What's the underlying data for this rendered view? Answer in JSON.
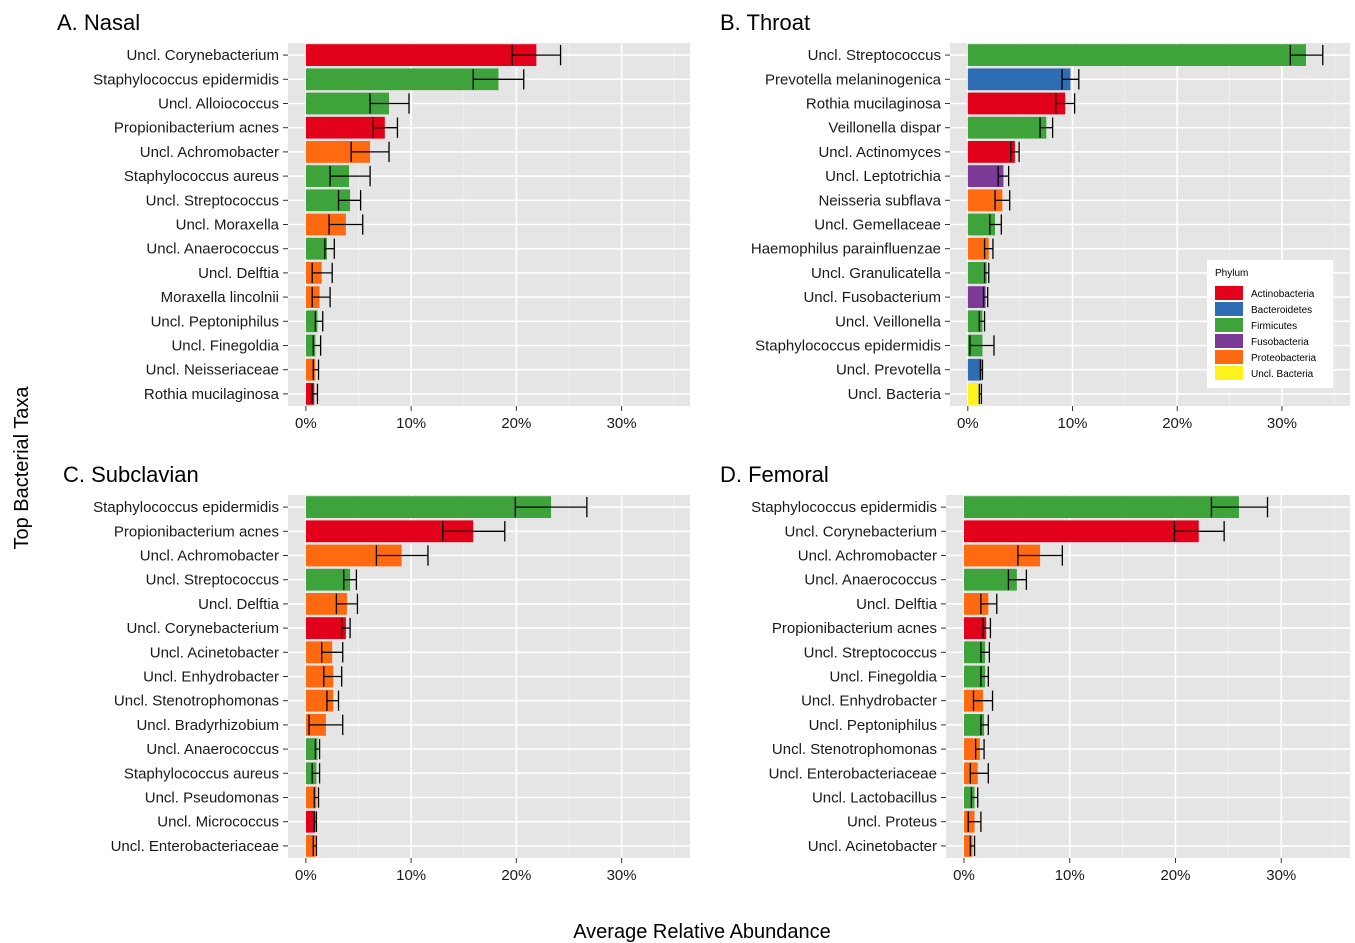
{
  "xlabel": "Average Relative Abundance",
  "ylabel": "Top Bacterial Taxa",
  "xticks": [
    0,
    10,
    20,
    30
  ],
  "xtick_labels": [
    "0%",
    "10%",
    "20%",
    "30%"
  ],
  "legend": {
    "title": "Phylum",
    "placement": "right, inside panel B",
    "items": [
      {
        "name": "Actinobacteria",
        "color": "#E3001B"
      },
      {
        "name": "Bacteroidetes",
        "color": "#2E6CB3"
      },
      {
        "name": "Firmicutes",
        "color": "#3FA33C"
      },
      {
        "name": "Fusobacteria",
        "color": "#7B3A96"
      },
      {
        "name": "Proteobacteria",
        "color": "#FF6A10"
      },
      {
        "name": "Uncl. Bacteria",
        "color": "#FFF21A"
      }
    ]
  },
  "chart_data": [
    {
      "type": "bar",
      "orientation": "horizontal",
      "title": "A. Nasal",
      "xlim": [
        -1.7,
        36.5
      ],
      "grid": true,
      "categories": [
        "Uncl. Corynebacterium",
        "Staphylococcus epidermidis",
        "Uncl. Alloiococcus",
        "Propionibacterium acnes",
        "Uncl. Achromobacter",
        "Staphylococcus aureus",
        "Uncl. Streptococcus",
        "Uncl. Moraxella",
        "Uncl. Anaerococcus",
        "Uncl. Delftia",
        "Moraxella lincolnii",
        "Uncl. Peptoniphilus",
        "Uncl. Finegoldia",
        "Uncl. Neisseriaceae",
        "Rothia mucilaginosa"
      ],
      "phyla": [
        "Actinobacteria",
        "Firmicutes",
        "Firmicutes",
        "Actinobacteria",
        "Proteobacteria",
        "Firmicutes",
        "Firmicutes",
        "Proteobacteria",
        "Firmicutes",
        "Proteobacteria",
        "Proteobacteria",
        "Firmicutes",
        "Firmicutes",
        "Proteobacteria",
        "Actinobacteria"
      ],
      "values": [
        21.9,
        18.3,
        7.9,
        7.5,
        6.1,
        4.1,
        4.2,
        3.8,
        2.0,
        1.5,
        1.3,
        1.1,
        0.9,
        0.9,
        0.8
      ],
      "error_low": [
        19.6,
        15.9,
        6.1,
        6.4,
        4.3,
        2.3,
        3.1,
        2.2,
        1.8,
        0.6,
        0.6,
        0.9,
        0.7,
        0.7,
        0.6
      ],
      "error_high": [
        24.2,
        20.7,
        9.8,
        8.7,
        7.9,
        6.1,
        5.2,
        5.4,
        2.7,
        2.5,
        2.3,
        1.6,
        1.4,
        1.2,
        1.1
      ]
    },
    {
      "type": "bar",
      "orientation": "horizontal",
      "title": "B. Throat",
      "xlim": [
        -1.7,
        36.5
      ],
      "grid": true,
      "categories": [
        "Uncl. Streptococcus",
        "Prevotella melaninogenica",
        "Rothia mucilaginosa",
        "Veillonella dispar",
        "Uncl. Actinomyces",
        "Uncl. Leptotrichia",
        "Neisseria subflava",
        "Uncl. Gemellaceae",
        "Haemophilus parainfluenzae",
        "Uncl. Granulicatella",
        "Uncl. Fusobacterium",
        "Uncl. Veillonella",
        "Staphylococcus epidermidis",
        "Uncl. Prevotella",
        "Uncl. Bacteria"
      ],
      "phyla": [
        "Firmicutes",
        "Bacteroidetes",
        "Actinobacteria",
        "Firmicutes",
        "Actinobacteria",
        "Fusobacteria",
        "Proteobacteria",
        "Firmicutes",
        "Proteobacteria",
        "Firmicutes",
        "Fusobacteria",
        "Firmicutes",
        "Firmicutes",
        "Bacteroidetes",
        "Uncl. Bacteria"
      ],
      "values": [
        32.3,
        9.8,
        9.3,
        7.5,
        4.5,
        3.4,
        3.3,
        2.6,
        2.0,
        1.8,
        1.7,
        1.4,
        1.4,
        1.3,
        1.2
      ],
      "error_low": [
        30.8,
        9.0,
        8.4,
        6.9,
        4.1,
        2.9,
        2.6,
        2.1,
        1.6,
        1.6,
        1.5,
        1.1,
        0.2,
        1.2,
        1.1
      ],
      "error_high": [
        33.9,
        10.6,
        10.2,
        8.1,
        4.9,
        3.9,
        4.0,
        3.2,
        2.4,
        2.0,
        1.9,
        1.6,
        2.5,
        1.4,
        1.3
      ]
    },
    {
      "type": "bar",
      "orientation": "horizontal",
      "title": "C. Subclavian",
      "xlim": [
        -1.7,
        36.5
      ],
      "grid": true,
      "categories": [
        "Staphylococcus epidermidis",
        "Propionibacterium acnes",
        "Uncl. Achromobacter",
        "Uncl. Streptococcus",
        "Uncl. Delftia",
        "Uncl. Corynebacterium",
        "Uncl. Acinetobacter",
        "Uncl. Enhydrobacter",
        "Uncl. Stenotrophomonas",
        "Uncl. Bradyrhizobium",
        "Uncl. Anaerococcus",
        "Staphylococcus aureus",
        "Uncl. Pseudomonas",
        "Uncl. Micrococcus",
        "Uncl. Enterobacteriaceae"
      ],
      "phyla": [
        "Firmicutes",
        "Actinobacteria",
        "Proteobacteria",
        "Firmicutes",
        "Proteobacteria",
        "Actinobacteria",
        "Proteobacteria",
        "Proteobacteria",
        "Proteobacteria",
        "Proteobacteria",
        "Firmicutes",
        "Firmicutes",
        "Proteobacteria",
        "Actinobacteria",
        "Proteobacteria"
      ],
      "values": [
        23.3,
        15.9,
        9.1,
        4.2,
        3.9,
        3.8,
        2.5,
        2.6,
        2.6,
        1.9,
        1.1,
        1.0,
        1.0,
        0.9,
        0.9
      ],
      "error_low": [
        19.9,
        13.0,
        6.7,
        3.6,
        2.9,
        3.4,
        1.5,
        1.7,
        2.0,
        0.3,
        0.9,
        0.6,
        0.8,
        0.8,
        0.7
      ],
      "error_high": [
        26.7,
        18.9,
        11.6,
        4.8,
        4.9,
        4.2,
        3.5,
        3.4,
        3.1,
        3.5,
        1.3,
        1.3,
        1.2,
        1.0,
        1.0
      ]
    },
    {
      "type": "bar",
      "orientation": "horizontal",
      "title": "D. Femoral",
      "xlim": [
        -1.7,
        36.5
      ],
      "grid": true,
      "categories": [
        "Staphylococcus epidermidis",
        "Uncl. Corynebacterium",
        "Uncl. Achromobacter",
        "Uncl. Anaerococcus",
        "Uncl. Delftia",
        "Propionibacterium acnes",
        "Uncl. Streptococcus",
        "Uncl. Finegoldia",
        "Uncl. Enhydrobacter",
        "Uncl. Peptoniphilus",
        "Uncl. Stenotrophomonas",
        "Uncl. Enterobacteriaceae",
        "Uncl. Lactobacillus",
        "Uncl. Proteus",
        "Uncl. Acinetobacter"
      ],
      "phyla": [
        "Firmicutes",
        "Actinobacteria",
        "Proteobacteria",
        "Firmicutes",
        "Proteobacteria",
        "Actinobacteria",
        "Firmicutes",
        "Firmicutes",
        "Proteobacteria",
        "Firmicutes",
        "Proteobacteria",
        "Proteobacteria",
        "Firmicutes",
        "Proteobacteria",
        "Proteobacteria"
      ],
      "values": [
        26.0,
        22.2,
        7.2,
        5.0,
        2.3,
        2.1,
        2.0,
        2.0,
        1.8,
        1.9,
        1.5,
        1.3,
        1.0,
        1.0,
        0.8
      ],
      "error_low": [
        23.4,
        19.9,
        5.1,
        4.2,
        1.6,
        1.8,
        1.6,
        1.6,
        0.9,
        1.6,
        1.1,
        0.6,
        0.7,
        0.4,
        0.6
      ],
      "error_high": [
        28.7,
        24.6,
        9.3,
        5.9,
        3.1,
        2.5,
        2.4,
        2.3,
        2.7,
        2.3,
        1.9,
        2.3,
        1.3,
        1.6,
        1.0
      ]
    }
  ]
}
